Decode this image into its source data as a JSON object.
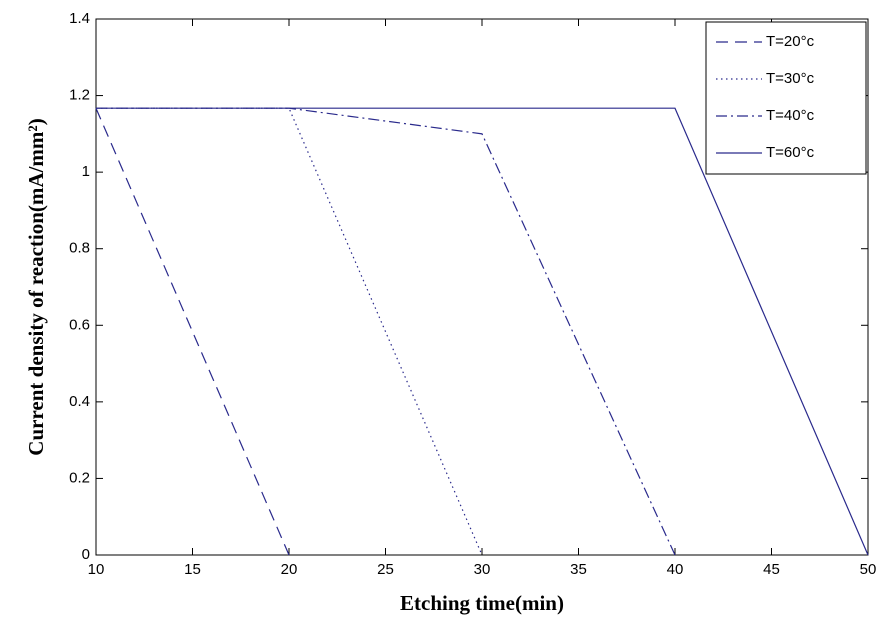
{
  "chart_data": {
    "type": "line",
    "xlabel": "Etching time(min)",
    "ylabel": "Current density of reaction(mA/mm²)",
    "xlim": [
      10,
      50
    ],
    "xticks": [
      10,
      15,
      20,
      25,
      30,
      35,
      40,
      45,
      50
    ],
    "ylim": [
      0,
      1.4
    ],
    "yticks": [
      0,
      0.2,
      0.4,
      0.6,
      0.8,
      1,
      1.2,
      1.4
    ],
    "legend": "upper-right",
    "series": [
      {
        "name": "T=20°c",
        "color": "#2a2a8c",
        "dash": "dashed",
        "x": [
          10,
          20
        ],
        "values": [
          1.167,
          0
        ]
      },
      {
        "name": "T=30°c",
        "color": "#2a2a8c",
        "dash": "dotted",
        "x": [
          10,
          20,
          30
        ],
        "values": [
          1.167,
          1.167,
          0
        ]
      },
      {
        "name": "T=40°c",
        "color": "#2a2a8c",
        "dash": "dashdot",
        "x": [
          10,
          20,
          30,
          40
        ],
        "values": [
          1.167,
          1.167,
          1.1,
          0
        ]
      },
      {
        "name": "T=60°c",
        "color": "#2a2a8c",
        "dash": "solid",
        "x": [
          10,
          40,
          50
        ],
        "values": [
          1.167,
          1.167,
          0
        ]
      }
    ]
  }
}
